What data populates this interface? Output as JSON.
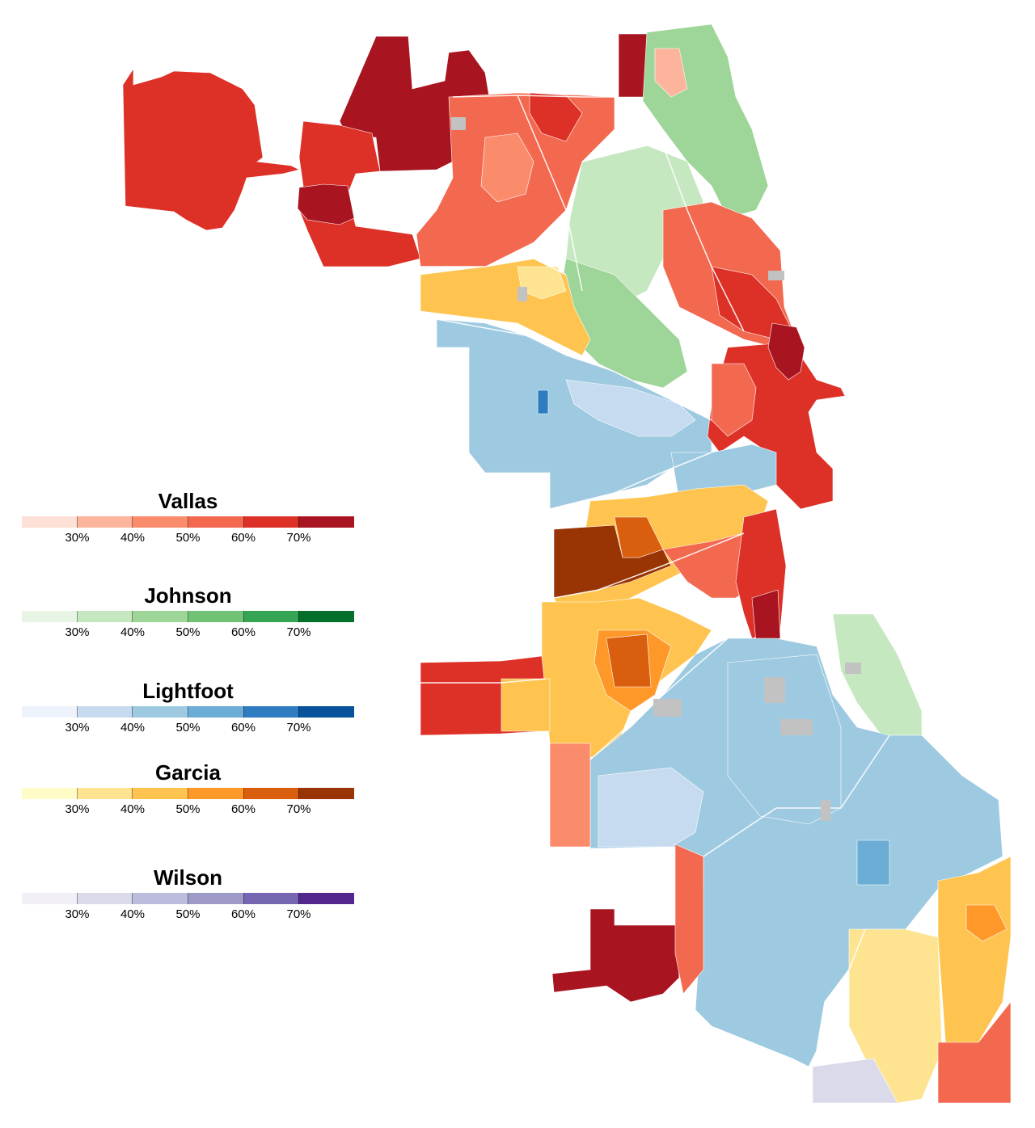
{
  "map": {
    "colors": {
      "vallas": [
        "#fde0d6",
        "#fcb49c",
        "#fb8c6b",
        "#f36950",
        "#dd3128",
        "#a81520"
      ],
      "johnson": [
        "#e8f5e4",
        "#c5e8c0",
        "#9ed598",
        "#72c275",
        "#35a455",
        "#05702c"
      ],
      "lightfoot": [
        "#eef3fb",
        "#c6dbef",
        "#9ecae1",
        "#6badd5",
        "#2f7dc0",
        "#08529b"
      ],
      "garcia": [
        "#fffcc8",
        "#fee391",
        "#fec44f",
        "#fe9929",
        "#d95f0e",
        "#993404"
      ],
      "wilson": [
        "#f2f0f6",
        "#dadaeb",
        "#bcbddc",
        "#9e9ac8",
        "#7766b2",
        "#54278f"
      ],
      "no_data": "#c2c2c2"
    }
  },
  "legends": [
    {
      "candidate": "Vallas",
      "key": "vallas",
      "ticks": [
        "30%",
        "40%",
        "50%",
        "60%",
        "70%"
      ]
    },
    {
      "candidate": "Johnson",
      "key": "johnson",
      "ticks": [
        "30%",
        "40%",
        "50%",
        "60%",
        "70%"
      ]
    },
    {
      "candidate": "Lightfoot",
      "key": "lightfoot",
      "ticks": [
        "30%",
        "40%",
        "50%",
        "60%",
        "70%"
      ]
    },
    {
      "candidate": "Garcia",
      "key": "garcia",
      "ticks": [
        "30%",
        "40%",
        "50%",
        "60%",
        "70%"
      ]
    },
    {
      "candidate": "Wilson",
      "key": "wilson",
      "ticks": [
        "30%",
        "40%",
        "50%",
        "60%",
        "70%"
      ]
    }
  ]
}
